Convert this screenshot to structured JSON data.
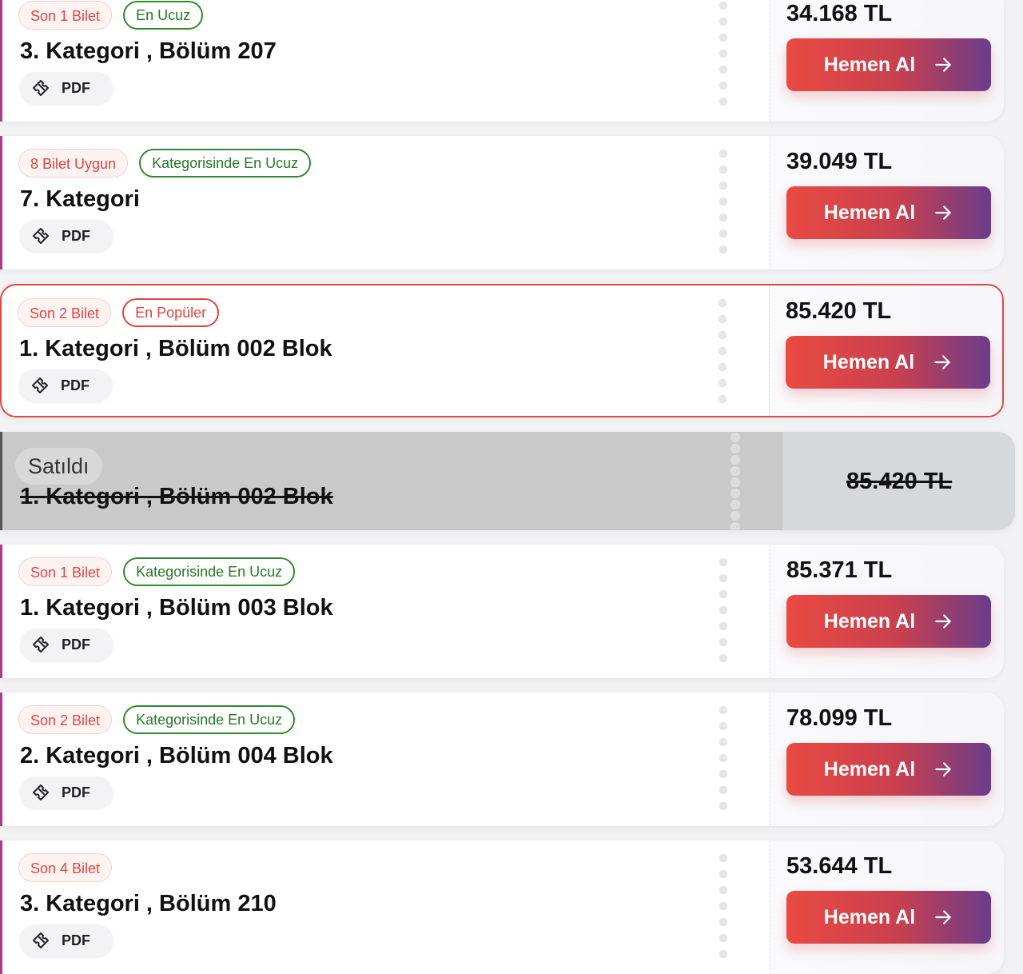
{
  "tickets": [
    {
      "badges": [
        "Son 1 Bilet",
        "En Ucuz"
      ],
      "title": "3. Kategori , Bölüm 207",
      "format": "PDF",
      "price": "34.168 TL",
      "button": "Hemen Al"
    },
    {
      "badges": [
        "8 Bilet Uygun",
        "Kategorisinde En Ucuz"
      ],
      "title": "7. Kategori",
      "format": "PDF",
      "price": "39.049 TL",
      "button": "Hemen Al"
    },
    {
      "badges": [
        "Son 2 Bilet",
        "En Popüler"
      ],
      "title": "1. Kategori , Bölüm 002 Blok",
      "format": "PDF",
      "price": "85.420 TL",
      "button": "Hemen Al",
      "featured": true
    },
    {
      "status": "Satıldı",
      "title": "1. Kategori , Bölüm 002 Blok",
      "price": "85.420 TL",
      "sold": true
    },
    {
      "badges": [
        "Son 1 Bilet",
        "Kategorisinde En Ucuz"
      ],
      "title": "1. Kategori , Bölüm 003 Blok",
      "format": "PDF",
      "price": "85.371 TL",
      "button": "Hemen Al"
    },
    {
      "badges": [
        "Son 2 Bilet",
        "Kategorisinde En Ucuz"
      ],
      "title": "2. Kategori , Bölüm 004 Blok",
      "format": "PDF",
      "price": "78.099 TL",
      "button": "Hemen Al"
    },
    {
      "badges": [
        "Son 4 Bilet"
      ],
      "title": "3. Kategori , Bölüm 210",
      "format": "PDF",
      "price": "53.644 TL",
      "button": "Hemen Al"
    }
  ]
}
